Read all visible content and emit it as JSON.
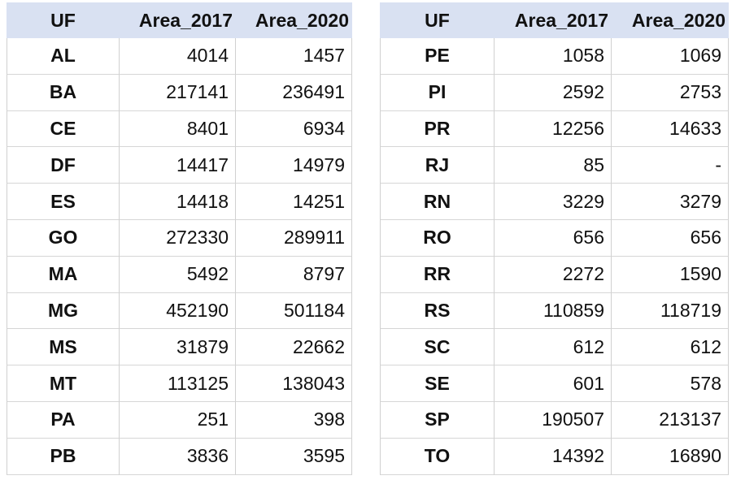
{
  "left": {
    "header": [
      "UF",
      "Area_2017",
      "Area_2020"
    ],
    "rows": [
      [
        "AL",
        4014,
        1457
      ],
      [
        "BA",
        217141,
        236491
      ],
      [
        "CE",
        8401,
        6934
      ],
      [
        "DF",
        14417,
        14979
      ],
      [
        "ES",
        14418,
        14251
      ],
      [
        "GO",
        272330,
        289911
      ],
      [
        "MA",
        5492,
        8797
      ],
      [
        "MG",
        452190,
        501184
      ],
      [
        "MS",
        31879,
        22662
      ],
      [
        "MT",
        113125,
        138043
      ],
      [
        "PA",
        251,
        398
      ],
      [
        "PB",
        3836,
        3595
      ]
    ]
  },
  "right": {
    "header": [
      "UF",
      "Area_2017",
      "Area_2020"
    ],
    "rows": [
      [
        "PE",
        1058,
        1069
      ],
      [
        "PI",
        2592,
        2753
      ],
      [
        "PR",
        12256,
        14633
      ],
      [
        "RJ",
        85,
        "-"
      ],
      [
        "RN",
        3229,
        3279
      ],
      [
        "RO",
        656,
        656
      ],
      [
        "RR",
        2272,
        1590
      ],
      [
        "RS",
        110859,
        118719
      ],
      [
        "SC",
        612,
        612
      ],
      [
        "SE",
        601,
        578
      ],
      [
        "SP",
        190507,
        213137
      ],
      [
        "TO",
        14392,
        16890
      ]
    ]
  }
}
